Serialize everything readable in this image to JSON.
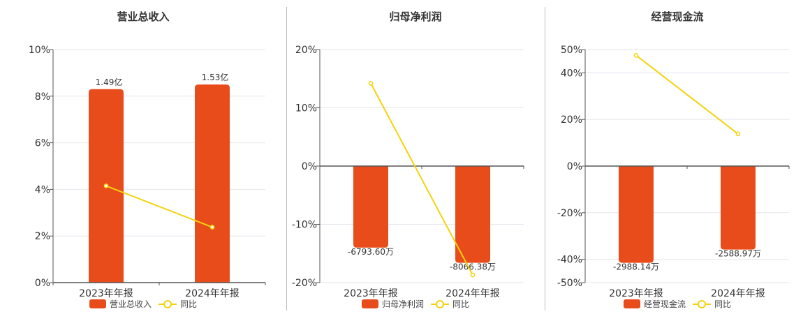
{
  "colors": {
    "bar": "#E84C1A",
    "line": "#F5D20F",
    "axis": "#555555",
    "grid": "#e6e6ee"
  },
  "legend_line_label": "同比",
  "chart_data": [
    {
      "type": "bar",
      "title": "营业总收入",
      "categories": [
        "2023年年报",
        "2024年年报"
      ],
      "bar_axis": {
        "ylim": [
          0,
          10
        ],
        "ticks": [
          0,
          2,
          4,
          6,
          8,
          10
        ],
        "tick_labels": [
          "0%",
          "2%",
          "4%",
          "6%",
          "8%",
          "10%"
        ]
      },
      "series": [
        {
          "name": "营业总收入",
          "kind": "bar",
          "values": [
            8.3,
            8.5
          ],
          "labels": [
            "1.49亿",
            "1.53亿"
          ]
        },
        {
          "name": "同比",
          "kind": "line",
          "values": [
            4.15,
            2.38
          ]
        }
      ]
    },
    {
      "type": "bar",
      "title": "归母净利润",
      "categories": [
        "2023年年报",
        "2024年年报"
      ],
      "bar_axis": {
        "ylim": [
          -20,
          20
        ],
        "ticks": [
          -20,
          -10,
          0,
          10,
          20
        ],
        "tick_labels": [
          "-20%",
          "-10%",
          "0%",
          "10%",
          "20%"
        ]
      },
      "series": [
        {
          "name": "归母净利润",
          "kind": "bar",
          "values": [
            -14.0,
            -16.6
          ],
          "labels": [
            "-6793.60万",
            "-8066.38万"
          ]
        },
        {
          "name": "同比",
          "kind": "line",
          "values": [
            14.2,
            -18.7
          ]
        }
      ]
    },
    {
      "type": "bar",
      "title": "经营现金流",
      "categories": [
        "2023年年报",
        "2024年年报"
      ],
      "bar_axis": {
        "ylim": [
          -50,
          50
        ],
        "ticks": [
          -50,
          -40,
          -20,
          0,
          20,
          40,
          50
        ],
        "tick_labels": [
          "-50%",
          "-40%",
          "-20%",
          "0%",
          "20%",
          "40%",
          "50%"
        ]
      },
      "series": [
        {
          "name": "经营现金流",
          "kind": "bar",
          "values": [
            -41.5,
            -35.8
          ],
          "labels": [
            "-2988.14万",
            "-2588.97万"
          ]
        },
        {
          "name": "同比",
          "kind": "line",
          "values": [
            47.5,
            13.8
          ]
        }
      ]
    }
  ]
}
